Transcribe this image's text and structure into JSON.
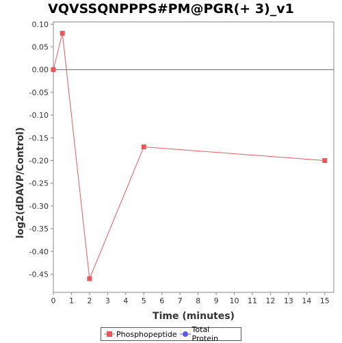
{
  "chart_data": {
    "type": "line",
    "title": "VQVSSQNPPPS#PM@PGR(+ 3)_v1",
    "xlabel": "Time (minutes)",
    "ylabel": "log2(dDAVP/Control)",
    "xlim": [
      0,
      15.5
    ],
    "ylim": [
      -0.49,
      0.105
    ],
    "x_ticks": [
      0,
      1,
      2,
      3,
      4,
      5,
      6,
      7,
      8,
      9,
      10,
      11,
      12,
      13,
      14,
      15
    ],
    "y_ticks": [
      0.1,
      0.05,
      0.0,
      -0.05,
      -0.1,
      -0.15,
      -0.2,
      -0.25,
      -0.3,
      -0.35,
      -0.4,
      -0.45
    ],
    "y_tick_labels": [
      "0.10",
      "0.05",
      "0.00",
      "-0.05",
      "-0.10",
      "-0.15",
      "-0.20",
      "-0.25",
      "-0.30",
      "-0.35",
      "-0.40",
      "-0.45"
    ],
    "zero_line": true,
    "grid": false,
    "legend_position": "bottom-center",
    "series": [
      {
        "name": "Phosphopeptide",
        "color": "#e8585a",
        "marker": "square",
        "points": [
          {
            "x": 0,
            "y": 0.0
          },
          {
            "x": 0.5,
            "y": 0.08
          },
          {
            "x": 2,
            "y": -0.46
          },
          {
            "x": 5,
            "y": -0.17
          },
          {
            "x": 15,
            "y": -0.2
          }
        ]
      },
      {
        "name": "Total Protein",
        "color": "#5a5aee",
        "marker": "circle",
        "points": []
      }
    ]
  }
}
